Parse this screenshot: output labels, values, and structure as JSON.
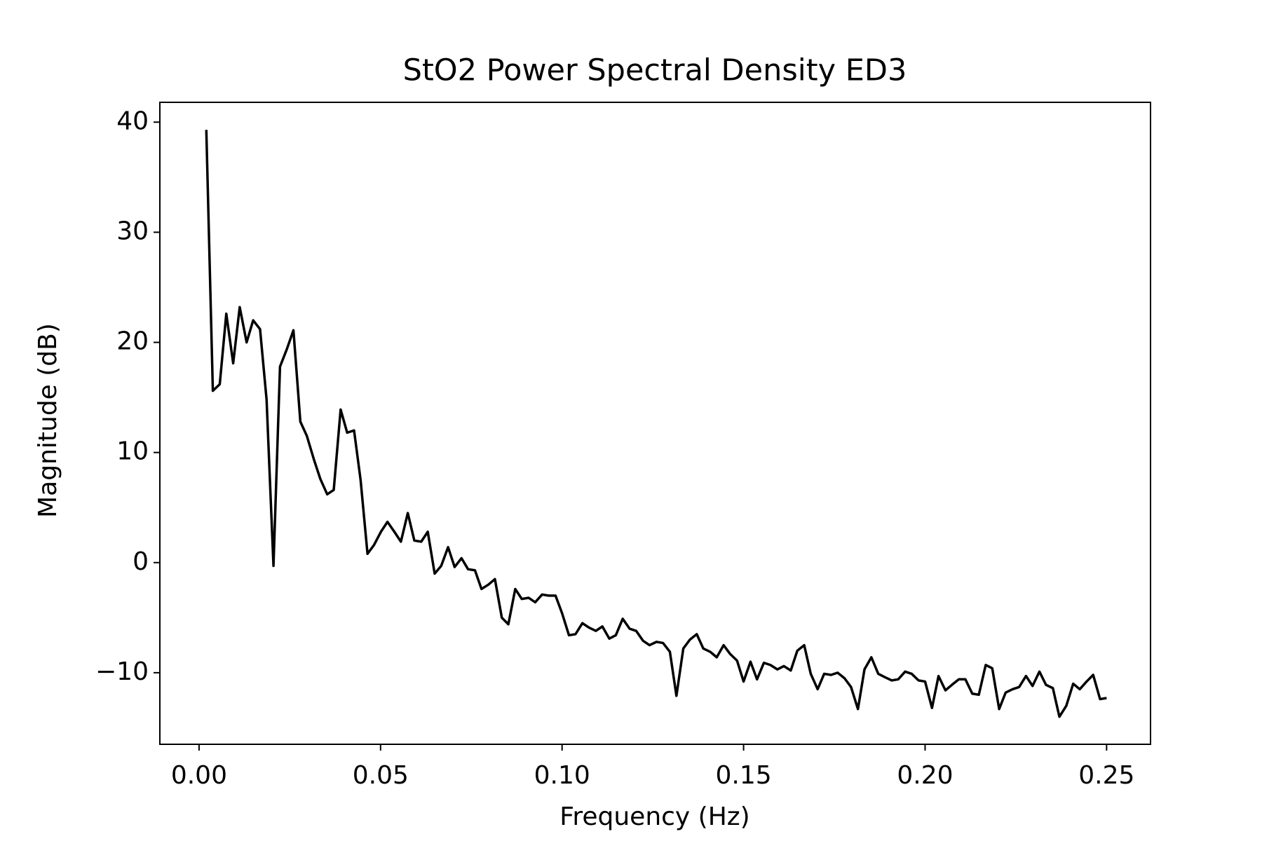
{
  "chart_data": {
    "type": "line",
    "title": "StO2 Power Spectral Density ED3",
    "x_label": "Frequency (Hz)",
    "y_label": "Magnitude (dB)",
    "x": [
      0.002,
      0.0038,
      0.0057,
      0.0075,
      0.0094,
      0.0112,
      0.0131,
      0.0149,
      0.0168,
      0.0186,
      0.0205,
      0.0223,
      0.0242,
      0.026,
      0.0279,
      0.0297,
      0.0316,
      0.0334,
      0.0353,
      0.0371,
      0.039,
      0.0408,
      0.0427,
      0.0445,
      0.0464,
      0.0482,
      0.0501,
      0.0519,
      0.0538,
      0.0556,
      0.0575,
      0.0593,
      0.0612,
      0.063,
      0.0649,
      0.0667,
      0.0686,
      0.0704,
      0.0723,
      0.0741,
      0.076,
      0.0778,
      0.0797,
      0.0815,
      0.0834,
      0.0852,
      0.0871,
      0.0889,
      0.0908,
      0.0926,
      0.0945,
      0.0963,
      0.0982,
      0.1,
      0.1019,
      0.1037,
      0.1056,
      0.1074,
      0.1093,
      0.1111,
      0.113,
      0.1148,
      0.1167,
      0.1186,
      0.1204,
      0.1223,
      0.1241,
      0.126,
      0.1278,
      0.1297,
      0.1315,
      0.1334,
      0.1352,
      0.1371,
      0.1389,
      0.1408,
      0.1426,
      0.1445,
      0.1463,
      0.1482,
      0.15,
      0.1519,
      0.1537,
      0.1556,
      0.1574,
      0.1593,
      0.1611,
      0.163,
      0.1648,
      0.1667,
      0.1685,
      0.1704,
      0.1722,
      0.1741,
      0.1759,
      0.1778,
      0.1796,
      0.1815,
      0.1833,
      0.1852,
      0.1871,
      0.1889,
      0.1908,
      0.1926,
      0.1945,
      0.1963,
      0.1982,
      0.2,
      0.2019,
      0.2037,
      0.2056,
      0.2074,
      0.2093,
      0.2111,
      0.213,
      0.2148,
      0.2167,
      0.2185,
      0.2204,
      0.2222,
      0.2241,
      0.2259,
      0.2278,
      0.2296,
      0.2315,
      0.2333,
      0.2352,
      0.237,
      0.2389,
      0.2408,
      0.2426,
      0.2445,
      0.2463,
      0.2482,
      0.25
    ],
    "series": [
      {
        "name": "StO2",
        "color": "#000000",
        "values": [
          39.3,
          15.6,
          16.2,
          22.6,
          18.1,
          23.2,
          20.0,
          22.0,
          21.2,
          14.8,
          -0.3,
          17.8,
          19.4,
          21.1,
          12.8,
          11.5,
          9.4,
          7.6,
          6.2,
          6.6,
          13.9,
          11.8,
          12.0,
          7.5,
          0.8,
          1.6,
          2.8,
          3.7,
          2.8,
          1.9,
          4.5,
          2.0,
          1.9,
          2.8,
          -1.0,
          -0.3,
          1.4,
          -0.4,
          0.4,
          -0.6,
          -0.7,
          -2.4,
          -2.0,
          -1.5,
          -5.0,
          -5.6,
          -2.4,
          -3.3,
          -3.2,
          -3.6,
          -2.9,
          -3.0,
          -3.0,
          -4.6,
          -6.6,
          -6.5,
          -5.5,
          -5.9,
          -6.2,
          -5.8,
          -6.9,
          -6.6,
          -5.1,
          -6.0,
          -6.2,
          -7.1,
          -7.5,
          -7.2,
          -7.3,
          -8.1,
          -12.1,
          -7.8,
          -7.0,
          -6.5,
          -7.8,
          -8.1,
          -8.6,
          -7.5,
          -8.3,
          -8.9,
          -10.8,
          -9.0,
          -10.6,
          -9.1,
          -9.3,
          -9.7,
          -9.4,
          -9.8,
          -8.0,
          -7.5,
          -10.1,
          -11.5,
          -10.1,
          -10.2,
          -10.0,
          -10.5,
          -11.3,
          -13.3,
          -9.7,
          -8.6,
          -10.1,
          -10.4,
          -10.7,
          -10.6,
          -9.9,
          -10.1,
          -10.7,
          -10.8,
          -13.2,
          -10.3,
          -11.6,
          -11.1,
          -10.6,
          -10.6,
          -11.9,
          -12.0,
          -9.3,
          -9.6,
          -13.3,
          -11.8,
          -11.5,
          -11.3,
          -10.3,
          -11.2,
          -9.9,
          -11.1,
          -11.4,
          -14.0,
          -13.0,
          -11.0,
          -11.5,
          -10.8,
          -10.2,
          -12.4,
          -12.3
        ]
      }
    ],
    "xlim": [
      -0.0108,
      0.2621
    ],
    "ylim": [
      -16.5,
      41.8
    ],
    "xticks": [
      {
        "value": 0,
        "label": "0.00"
      },
      {
        "value": 0.05,
        "label": "0.05"
      },
      {
        "value": 0.1,
        "label": "0.10"
      },
      {
        "value": 0.15,
        "label": "0.15"
      },
      {
        "value": 0.2,
        "label": "0.20"
      },
      {
        "value": 0.25,
        "label": "0.25"
      }
    ],
    "yticks": [
      {
        "value": -10,
        "label": "−10"
      },
      0,
      10,
      20,
      30,
      40
    ],
    "grid": false
  }
}
